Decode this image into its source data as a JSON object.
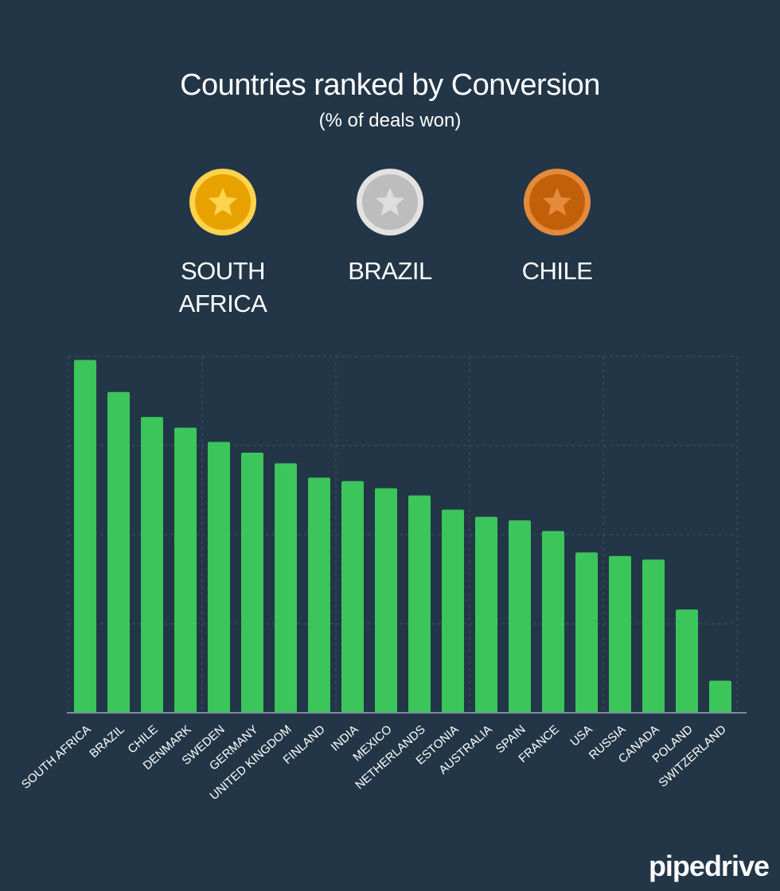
{
  "header": {
    "title": "Countries ranked by Conversion",
    "subtitle": "(% of deals won)"
  },
  "podium": [
    {
      "name": "SOUTH AFRICA",
      "medal": "gold-medal-icon",
      "color": "#f2b600"
    },
    {
      "name": "BRAZIL",
      "medal": "silver-medal-icon",
      "color": "#c9c9c9"
    },
    {
      "name": "CHILE",
      "medal": "bronze-medal-icon",
      "color": "#cf6f12"
    }
  ],
  "colors": {
    "background": "#223647",
    "bar": "#3bc55a",
    "grid": "#3f5365",
    "axis": "#7b8d9c"
  },
  "brand": {
    "logo": "pipedrive"
  },
  "chart_data": {
    "type": "bar",
    "title": "Countries ranked by Conversion",
    "subtitle": "(% of deals won)",
    "xlabel": "",
    "ylabel": "",
    "ylim": [
      0,
      100
    ],
    "grid": true,
    "categories": [
      "SOUTH AFRICA",
      "BRAZIL",
      "CHILE",
      "DENMARK",
      "SWEDEN",
      "GERMANY",
      "UNITED KINGDOM",
      "FINLAND",
      "INDIA",
      "MEXICO",
      "NETHERLANDS",
      "ESTONIA",
      "AUSTRALIA",
      "SPAIN",
      "FRANCE",
      "USA",
      "RUSSIA",
      "CANADA",
      "POLAND",
      "SWITZERLAND"
    ],
    "values": [
      99,
      90,
      83,
      80,
      76,
      73,
      70,
      66,
      65,
      63,
      61,
      57,
      55,
      54,
      51,
      45,
      44,
      43,
      29,
      9
    ]
  }
}
